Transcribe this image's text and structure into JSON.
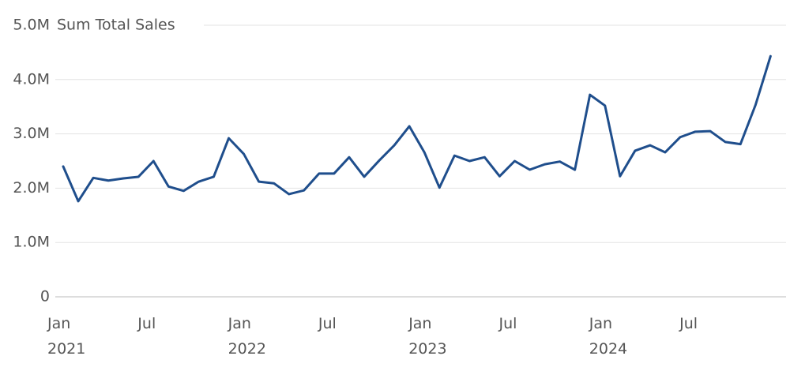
{
  "chart_data": {
    "type": "line",
    "y_label": "Sum Total Sales",
    "categories": [
      "Jan\n2021",
      null,
      null,
      null,
      null,
      null,
      "Jul",
      null,
      null,
      null,
      null,
      null,
      "Jan\n2022",
      null,
      null,
      null,
      null,
      null,
      "Jul",
      null,
      null,
      null,
      null,
      null,
      "Jan\n2023",
      null,
      null,
      null,
      null,
      null,
      "Jul",
      null,
      null,
      null,
      null,
      null,
      "Jan\n2024",
      null,
      null,
      null,
      null,
      null,
      "Jul",
      null,
      null,
      null,
      null,
      null
    ],
    "series": [
      {
        "name": "Sum Total Sales",
        "color": "#1f4e8c",
        "values": [
          2400000,
          1760000,
          2190000,
          2140000,
          2180000,
          2210000,
          2500000,
          2030000,
          1950000,
          2120000,
          2210000,
          2920000,
          2630000,
          2120000,
          2090000,
          1890000,
          1960000,
          2270000,
          2270000,
          2570000,
          2210000,
          2510000,
          2790000,
          3140000,
          2660000,
          2010000,
          2600000,
          2500000,
          2570000,
          2220000,
          2500000,
          2340000,
          2440000,
          2490000,
          2340000,
          3720000,
          3520000,
          2220000,
          2690000,
          2790000,
          2660000,
          2940000,
          3040000,
          3050000,
          2850000,
          2810000,
          3530000,
          4430000
        ]
      }
    ],
    "ylim": [
      0,
      5000000
    ],
    "yticks": [
      {
        "value": 0,
        "label": "0"
      },
      {
        "value": 1000000,
        "label": "1.0M"
      },
      {
        "value": 2000000,
        "label": "2.0M"
      },
      {
        "value": 3000000,
        "label": "3.0M"
      },
      {
        "value": 4000000,
        "label": "4.0M"
      },
      {
        "value": 5000000,
        "label": "5.0M"
      }
    ],
    "grid": true
  }
}
